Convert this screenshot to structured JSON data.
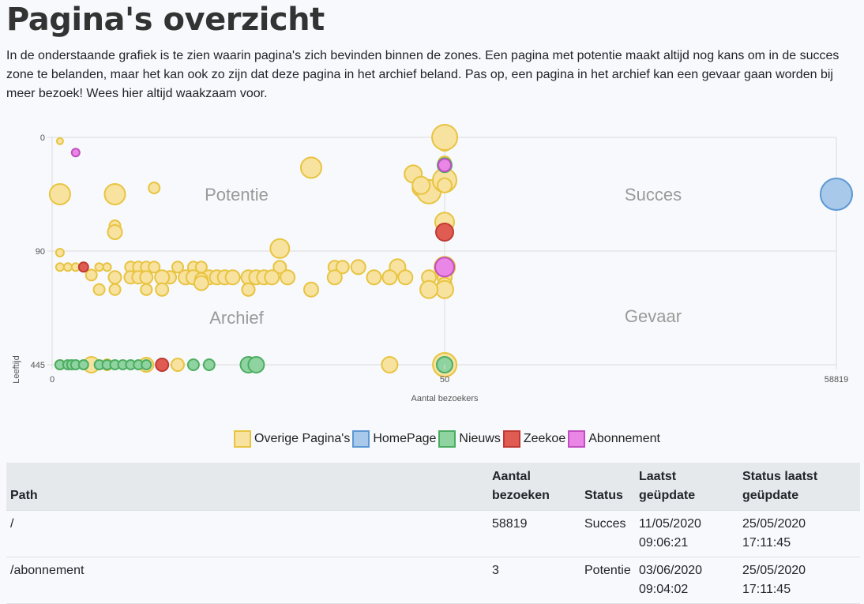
{
  "page": {
    "title": "Pagina's overzicht",
    "intro": "In de onderstaande grafiek is te zien waarin pagina's zich bevinden binnen de zones. Een pagina met potentie maakt altijd nog kans om in de succes zone te belanden, maar het kan ook zo zijn dat deze pagina in het archief beland. Pas op, een pagina in het archief kan een gevaar gaan worden bij meer bezoek! Wees hier altijd waakzaam voor."
  },
  "chart_data": {
    "type": "scatter",
    "xlabel": "Aantal bezoekers",
    "ylabel": "Leeftijd",
    "x_ticks": [
      "0",
      "50",
      "58819"
    ],
    "y_ticks": [
      "0",
      "90",
      "445"
    ],
    "zones": [
      "Potentie",
      "Succes",
      "Archief",
      "Gevaar"
    ],
    "colors": {
      "Overige Pagina's": {
        "fill": "#f8e2a0",
        "stroke": "#e8c440"
      },
      "HomePage": {
        "fill": "#a9c9ea",
        "stroke": "#5d98d3"
      },
      "Nieuws": {
        "fill": "#8fd3a0",
        "stroke": "#4cad62"
      },
      "Zeekoe": {
        "fill": "#e05c52",
        "stroke": "#c03a33"
      },
      "Abonnement": {
        "fill": "#ea86e6",
        "stroke": "#c14fc0"
      }
    },
    "note": "Piecewise axes: x 0-50 left half, 50-58819 right half; y 0-90 upper half, 90-445 lower half. Point values are approximate readings in axis units [x, y, radius].",
    "series": [
      {
        "name": "Overige Pagina's",
        "points": [
          [
            1,
            3,
            4
          ],
          [
            51,
            5,
            9
          ],
          [
            59,
            0,
            16
          ],
          [
            33,
            24,
            13
          ],
          [
            46,
            29,
            11
          ],
          [
            47,
            40,
            11
          ],
          [
            48,
            43,
            15
          ],
          [
            54,
            34,
            15
          ],
          [
            1,
            45,
            13
          ],
          [
            8,
            45,
            13
          ],
          [
            53,
            20,
            8
          ],
          [
            53,
            38,
            9
          ],
          [
            47,
            38,
            11
          ],
          [
            52,
            67,
            12
          ],
          [
            13,
            40,
            7
          ],
          [
            8,
            70,
            7
          ],
          [
            8,
            75,
            9
          ],
          [
            29,
            88,
            12
          ],
          [
            1,
            95,
            5
          ],
          [
            1,
            140,
            5
          ],
          [
            2,
            140,
            5
          ],
          [
            3,
            140,
            5
          ],
          [
            6,
            140,
            5
          ],
          [
            7,
            140,
            5
          ],
          [
            10,
            140,
            7
          ],
          [
            10,
            140,
            7
          ],
          [
            11,
            140,
            7
          ],
          [
            12,
            140,
            7
          ],
          [
            13,
            140,
            7
          ],
          [
            16,
            140,
            7
          ],
          [
            18,
            140,
            7
          ],
          [
            19,
            140,
            7
          ],
          [
            29,
            140,
            8
          ],
          [
            36,
            140,
            8
          ],
          [
            37,
            140,
            8
          ],
          [
            39,
            140,
            9
          ],
          [
            44,
            140,
            10
          ],
          [
            53,
            140,
            12
          ],
          [
            54,
            140,
            10
          ],
          [
            56,
            140,
            13
          ],
          [
            55,
            140,
            11
          ],
          [
            59,
            140,
            13
          ],
          [
            5,
            165,
            7
          ],
          [
            8,
            172,
            8
          ],
          [
            10,
            172,
            8
          ],
          [
            11,
            172,
            8
          ],
          [
            12,
            172,
            8
          ],
          [
            14,
            172,
            8
          ],
          [
            15,
            172,
            8
          ],
          [
            17,
            172,
            8
          ],
          [
            14,
            172,
            9
          ],
          [
            17,
            172,
            9
          ],
          [
            18,
            172,
            9
          ],
          [
            20,
            172,
            9
          ],
          [
            21,
            172,
            9
          ],
          [
            22,
            172,
            9
          ],
          [
            23,
            172,
            9
          ],
          [
            25,
            172,
            9
          ],
          [
            26,
            172,
            9
          ],
          [
            27,
            172,
            9
          ],
          [
            28,
            172,
            9
          ],
          [
            30,
            172,
            9
          ],
          [
            36,
            172,
            9
          ],
          [
            41,
            172,
            9
          ],
          [
            43,
            172,
            9
          ],
          [
            45,
            172,
            9
          ],
          [
            48,
            172,
            9
          ],
          [
            52,
            172,
            9
          ],
          [
            53,
            172,
            9
          ],
          [
            54,
            172,
            9
          ],
          [
            55,
            172,
            9
          ],
          [
            19,
            178,
            8
          ],
          [
            6,
            210,
            7
          ],
          [
            8,
            210,
            7
          ],
          [
            12,
            210,
            7
          ],
          [
            12,
            210,
            7
          ],
          [
            14,
            210,
            7
          ],
          [
            14,
            210,
            8
          ],
          [
            19,
            190,
            9
          ],
          [
            25,
            210,
            8
          ],
          [
            25,
            210,
            8
          ],
          [
            33,
            210,
            9
          ],
          [
            48,
            210,
            10
          ],
          [
            52,
            195,
            9
          ],
          [
            54,
            210,
            10
          ],
          [
            55,
            210,
            11
          ],
          [
            48,
            210,
            11
          ],
          [
            1,
            445,
            6
          ],
          [
            1,
            445,
            6
          ],
          [
            5,
            445,
            10
          ],
          [
            7,
            445,
            7
          ],
          [
            12,
            445,
            9
          ],
          [
            16,
            445,
            8
          ],
          [
            43,
            445,
            10
          ],
          [
            59,
            445,
            15
          ]
        ]
      },
      {
        "name": "HomePage",
        "points": [
          [
            58819,
            45,
            20
          ]
        ]
      },
      {
        "name": "Nieuws",
        "points": [
          [
            52,
            22,
            9
          ],
          [
            1,
            445,
            6
          ],
          [
            2,
            445,
            6
          ],
          [
            2.5,
            445,
            6
          ],
          [
            3,
            445,
            6
          ],
          [
            4,
            445,
            6
          ],
          [
            6,
            445,
            6
          ],
          [
            7,
            445,
            6
          ],
          [
            8,
            445,
            6
          ],
          [
            9,
            445,
            6
          ],
          [
            10,
            445,
            6
          ],
          [
            11,
            445,
            6
          ],
          [
            12,
            445,
            6
          ],
          [
            18,
            445,
            7
          ],
          [
            20,
            445,
            7
          ],
          [
            25,
            445,
            10
          ],
          [
            26,
            445,
            10
          ],
          [
            54,
            445,
            10
          ]
        ]
      },
      {
        "name": "Zeekoe",
        "points": [
          [
            55,
            75,
            11
          ],
          [
            4,
            140,
            6
          ],
          [
            14,
            445,
            8
          ]
        ]
      },
      {
        "name": "Abonnement",
        "points": [
          [
            3,
            12,
            5
          ],
          [
            54,
            22,
            8
          ],
          [
            52,
            140,
            12
          ]
        ]
      }
    ]
  },
  "table": {
    "headers": [
      "Path",
      "Aantal bezoeken",
      "Status",
      "Laatst geüpdate",
      "Status laatst geüpdate"
    ],
    "rows": [
      [
        "/",
        "58819",
        "Succes",
        "11/05/2020 09:06:21",
        "25/05/2020 17:11:45"
      ],
      [
        "/abonnement",
        "3",
        "Potentie",
        "03/06/2020 09:04:02",
        "25/05/2020 17:11:45"
      ]
    ]
  }
}
